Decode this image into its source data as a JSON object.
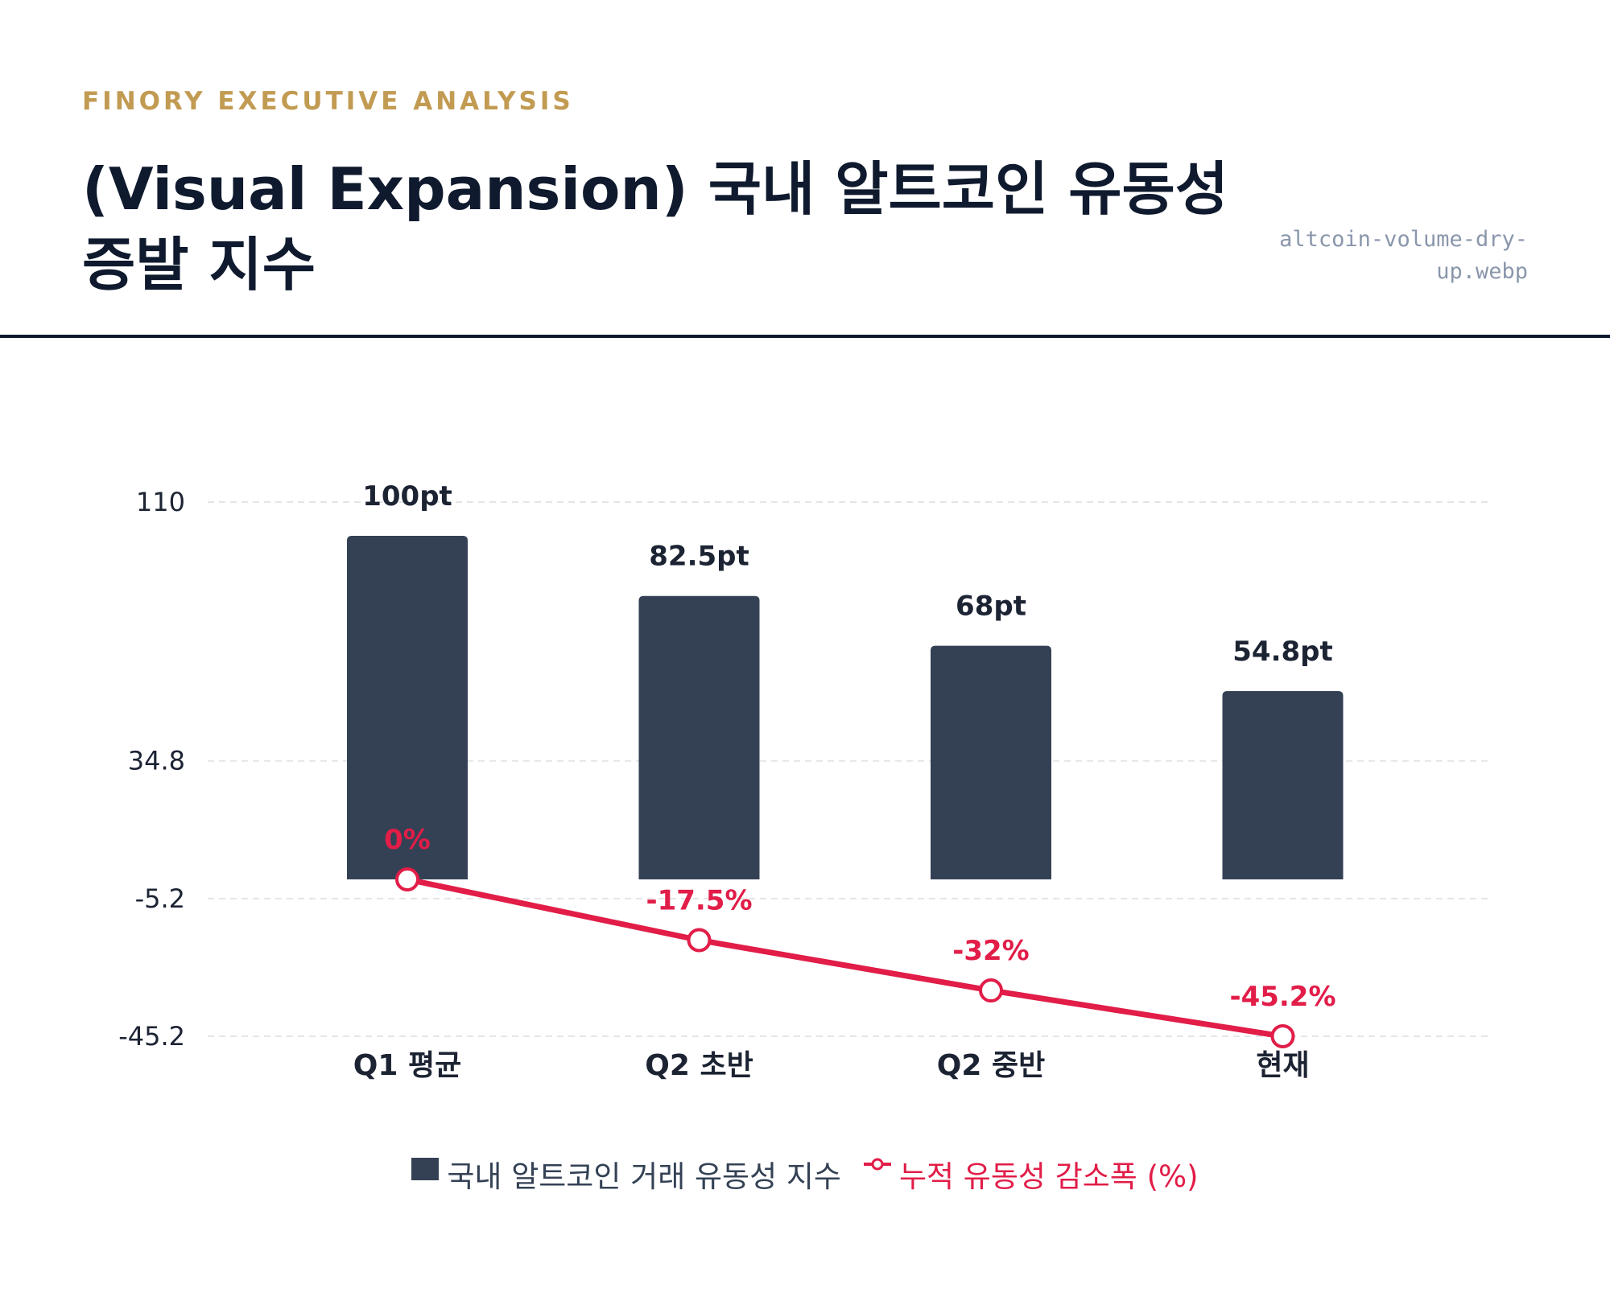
{
  "header": {
    "eyebrow": "FINORY EXECUTIVE ANALYSIS",
    "title": "(Visual Expansion) 국내 알트코인 유동성 증발 지수",
    "filename": "altcoin-volume-dry-up.webp"
  },
  "colors": {
    "bar": "#344155",
    "line": "#e11d48",
    "eyebrow": "#c29b52",
    "title": "#0f1a2e",
    "filename": "#8a96ab",
    "grid": "#e3e5e9"
  },
  "chart_data": {
    "type": "bar",
    "categories": [
      "Q1 평균",
      "Q2 초반",
      "Q2 중반",
      "현재"
    ],
    "series": [
      {
        "name": "국내 알트코인 거래 유동성 지수",
        "type": "bar",
        "values": [
          100,
          82.5,
          68,
          54.8
        ],
        "labels": [
          "100pt",
          "82.5pt",
          "68pt",
          "54.8pt"
        ]
      },
      {
        "name": "누적 유동성 감소폭 (%)",
        "type": "line",
        "values": [
          0,
          -17.5,
          -32,
          -45.2
        ],
        "labels": [
          "0%",
          "-17.5%",
          "-32%",
          "-45.2%"
        ]
      }
    ],
    "y_ticks": [
      "110",
      "34.8",
      "-5.2",
      "-45.2"
    ],
    "ylim": [
      -45.2,
      110
    ],
    "grid": true,
    "legend_position": "bottom"
  }
}
